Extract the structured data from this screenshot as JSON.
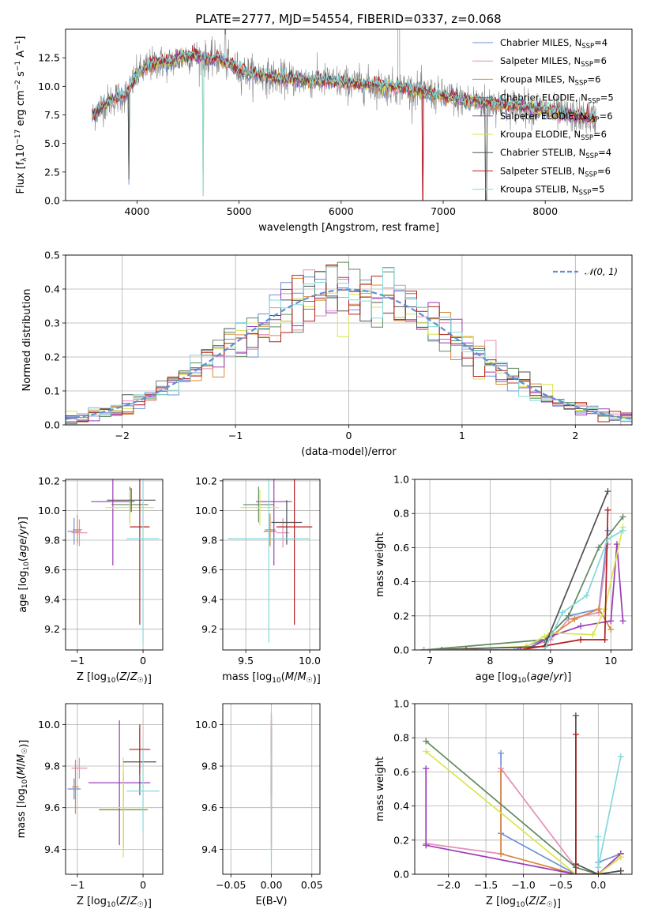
{
  "title": "PLATE=2777, MJD=54554, FIBERID=0337, z=0.068",
  "colors": [
    "#6e8fd8",
    "#e48fb6",
    "#d9893a",
    "#5f8a5f",
    "#9b3cb8",
    "#d8e64f",
    "#505050",
    "#b41e1e",
    "#83d8dc"
  ],
  "chart_data": [
    {
      "id": "spectrum",
      "type": "line",
      "xlabel": "wavelength [Angstrom, rest frame]",
      "ylabel": "Flux [f_λ10^-17 erg cm^-2 s^-1 A^-1]",
      "xlim": [
        3300,
        8850
      ],
      "ylim": [
        0,
        15
      ],
      "xticks": [
        4000,
        5000,
        6000,
        7000,
        8000
      ],
      "yticks": [
        0,
        2.5,
        5,
        7.5,
        10,
        12.5
      ],
      "ytick_labels": [
        "0.0",
        "2.5",
        "5.0",
        "7.5",
        "10.0",
        "12.5"
      ],
      "legend_position": "top-right",
      "series": [
        {
          "name": "Chabrier MILES, N_SSP=4",
          "label": "Chabrier MILES, N",
          "sub": "SSP",
          "suffix": "=4"
        },
        {
          "name": "Salpeter MILES, N_SSP=6",
          "label": "Salpeter MILES, N",
          "sub": "SSP",
          "suffix": "=6"
        },
        {
          "name": "Kroupa MILES, N_SSP=6",
          "label": "Kroupa MILES, N",
          "sub": "SSP",
          "suffix": "=6"
        },
        {
          "name": "Chabrier ELODIE, N_SSP=5",
          "label": "Chabrier ELODIE, N",
          "sub": "SSP",
          "suffix": "=5"
        },
        {
          "name": "Salpeter ELODIE, N_SSP=6",
          "label": "Salpeter ELODIE, N",
          "sub": "SSP",
          "suffix": "=6"
        },
        {
          "name": "Kroupa ELODIE, N_SSP=6",
          "label": "Kroupa ELODIE, N",
          "sub": "SSP",
          "suffix": "=6"
        },
        {
          "name": "Chabrier STELIB, N_SSP=4",
          "label": "Chabrier STELIB, N",
          "sub": "SSP",
          "suffix": "=4"
        },
        {
          "name": "Salpeter STELIB, N_SSP=6",
          "label": "Salpeter STELIB, N",
          "sub": "SSP",
          "suffix": "=6"
        },
        {
          "name": "Kroupa STELIB, N_SSP=5",
          "label": "Kroupa STELIB, N",
          "sub": "SSP",
          "suffix": "=5"
        }
      ],
      "continuum": {
        "x": [
          3560,
          3620,
          3700,
          3800,
          3900,
          4000,
          4100,
          4200,
          4300,
          4400,
          4500,
          4600,
          4700,
          4800,
          4900,
          5000,
          5200,
          5400,
          5600,
          5800,
          6000,
          6200,
          6400,
          6600,
          6800,
          7000,
          7200,
          7400,
          7600,
          7800,
          8000,
          8200,
          8400,
          8500
        ],
        "y": [
          7.3,
          8.0,
          8.6,
          9.0,
          9.3,
          11.0,
          11.7,
          12.1,
          12.0,
          12.4,
          12.7,
          12.6,
          12.3,
          12.4,
          12.0,
          11.4,
          11.0,
          10.7,
          10.6,
          10.5,
          10.3,
          10.2,
          10.0,
          9.9,
          9.5,
          9.1,
          8.8,
          8.6,
          8.4,
          8.2,
          7.9,
          7.5,
          7.3,
          7.2
        ]
      }
    },
    {
      "id": "residuals",
      "type": "line",
      "xlabel": "(data-model)/error",
      "ylabel": "Normed distribution",
      "xlim": [
        -2.5,
        2.5
      ],
      "ylim": [
        0,
        0.5
      ],
      "xticks": [
        -2,
        -1,
        0,
        1,
        2
      ],
      "xtick_labels": [
        "−2",
        "−1",
        "0",
        "1",
        "2"
      ],
      "yticks": [
        0,
        0.1,
        0.2,
        0.3,
        0.4,
        0.5
      ],
      "ytick_labels": [
        "0.0",
        "0.1",
        "0.2",
        "0.3",
        "0.4",
        "0.5"
      ],
      "legend_position": "top-right",
      "legend_label": "𝒩(0, 1)",
      "gaussian": {
        "mean": 0,
        "sigma": 1
      }
    },
    {
      "id": "age_vs_Z",
      "type": "errorbar",
      "xlabel": "Z [log10(Z/Z☉)]",
      "ylabel": "age [log10(age/yr)]",
      "xlim": [
        -1.18,
        0.3
      ],
      "ylim": [
        9.06,
        10.21
      ],
      "xticks": [
        -1,
        0
      ],
      "xtick_labels": [
        "−1",
        "0"
      ],
      "yticks": [
        9.2,
        9.4,
        9.6,
        9.8,
        10.0,
        10.2
      ],
      "ytick_labels": [
        "9.2",
        "9.4",
        "9.6",
        "9.8",
        "10.0",
        "10.2"
      ],
      "points": [
        {
          "x": -1.05,
          "xerr": 0.1,
          "y": 9.86,
          "yerr": 0.09
        },
        {
          "x": -0.97,
          "xerr": 0.12,
          "y": 9.85,
          "yerr": 0.09
        },
        {
          "x": -1.0,
          "xerr": 0.07,
          "y": 9.87,
          "yerr": 0.1
        },
        {
          "x": -0.2,
          "xerr": 0.28,
          "y": 10.04,
          "yerr": 0.12
        },
        {
          "x": -0.46,
          "xerr": 0.33,
          "y": 10.06,
          "yerr": 0.43
        },
        {
          "x": -0.2,
          "xerr": 0.37,
          "y": 10.02,
          "yerr": 0.12
        },
        {
          "x": -0.18,
          "xerr": 0.37,
          "y": 10.07,
          "yerr": 0.08
        },
        {
          "x": -0.05,
          "xerr": 0.15,
          "y": 9.89,
          "yerr": 0.66
        },
        {
          "x": 0.0,
          "xerr": 0.25,
          "y": 9.81,
          "yerr": 0.7
        }
      ]
    },
    {
      "id": "age_vs_mass",
      "type": "errorbar",
      "xlabel": "mass [log10(M/M☉)]",
      "ylabel": "",
      "xlim": [
        9.32,
        10.08
      ],
      "ylim": [
        9.06,
        10.21
      ],
      "xticks": [
        9.5,
        10.0
      ],
      "xtick_labels": [
        "9.5",
        "10.0"
      ],
      "yticks": [
        9.2,
        9.4,
        9.6,
        9.8,
        10.0,
        10.2
      ],
      "ytick_labels": [
        "9.2",
        "9.4",
        "9.6",
        "9.8",
        "10.0",
        "10.2"
      ],
      "points": [
        {
          "x": 9.69,
          "xerr": 0.05,
          "y": 9.86,
          "yerr": 0.1
        },
        {
          "x": 9.79,
          "xerr": 0.05,
          "y": 9.85,
          "yerr": 0.1
        },
        {
          "x": 9.69,
          "xerr": 0.04,
          "y": 9.87,
          "yerr": 0.11
        },
        {
          "x": 9.6,
          "xerr": 0.12,
          "y": 10.04,
          "yerr": 0.12
        },
        {
          "x": 9.72,
          "xerr": 0.14,
          "y": 10.06,
          "yerr": 0.43
        },
        {
          "x": 9.61,
          "xerr": 0.15,
          "y": 10.02,
          "yerr": 0.12
        },
        {
          "x": 9.82,
          "xerr": 0.12,
          "y": 9.92,
          "yerr": 0.15
        },
        {
          "x": 9.88,
          "xerr": 0.14,
          "y": 9.89,
          "yerr": 0.66
        },
        {
          "x": 9.68,
          "xerr": 0.32,
          "y": 9.81,
          "yerr": 0.7
        }
      ]
    },
    {
      "id": "massweight_vs_age",
      "type": "line",
      "xlabel": "age [log10(age/yr)]",
      "ylabel": "mass weight",
      "xlim": [
        6.75,
        10.35
      ],
      "ylim": [
        0,
        1
      ],
      "xticks": [
        7,
        8,
        9,
        10
      ],
      "xtick_labels": [
        "7",
        "8",
        "9",
        "10"
      ],
      "yticks": [
        0,
        0.2,
        0.4,
        0.6,
        0.8,
        1.0
      ],
      "ytick_labels": [
        "0.0",
        "0.2",
        "0.4",
        "0.6",
        "0.8",
        "1.0"
      ],
      "series": [
        {
          "x": [
            6.9,
            8.4,
            8.9,
            9.3,
            9.8,
            9.95
          ],
          "y": [
            0.0,
            0.0,
            0.06,
            0.2,
            0.24,
            0.7
          ]
        },
        {
          "x": [
            6.9,
            8.5,
            9.0,
            9.3,
            9.8,
            9.95
          ],
          "y": [
            0.0,
            0.0,
            0.06,
            0.18,
            0.22,
            0.62
          ]
        },
        {
          "x": [
            6.9,
            8.6,
            9.0,
            9.4,
            9.8,
            10.0
          ],
          "y": [
            0.0,
            0.0,
            0.08,
            0.18,
            0.24,
            0.12
          ]
        },
        {
          "x": [
            6.9,
            8.9,
            9.3,
            9.8,
            10.2
          ],
          "y": [
            0.0,
            0.06,
            0.2,
            0.6,
            0.78
          ]
        },
        {
          "x": [
            7.2,
            8.6,
            9.0,
            9.5,
            10.0,
            10.1,
            10.2
          ],
          "y": [
            0.0,
            0.0,
            0.08,
            0.14,
            0.17,
            0.62,
            0.17
          ]
        },
        {
          "x": [
            6.9,
            8.6,
            8.9,
            9.0,
            9.7,
            9.9,
            10.2
          ],
          "y": [
            0.0,
            0.02,
            0.08,
            0.1,
            0.09,
            0.24,
            0.72
          ]
        },
        {
          "x": [
            6.9,
            8.9,
            9.95
          ],
          "y": [
            0.0,
            0.02,
            0.93
          ]
        },
        {
          "x": [
            7.6,
            8.5,
            9.5,
            9.9,
            9.95
          ],
          "y": [
            0.0,
            0.0,
            0.06,
            0.06,
            0.82
          ]
        },
        {
          "x": [
            6.9,
            8.9,
            9.2,
            9.6,
            9.95,
            10.2
          ],
          "y": [
            0.0,
            0.0,
            0.22,
            0.32,
            0.65,
            0.7
          ]
        }
      ]
    },
    {
      "id": "mass_vs_Z",
      "type": "errorbar",
      "xlabel": "Z [log10(Z/Z☉)]",
      "ylabel": "mass [log10(M/M☉)]",
      "xlim": [
        -1.18,
        0.3
      ],
      "ylim": [
        9.28,
        10.1
      ],
      "xticks": [
        -1,
        0
      ],
      "xtick_labels": [
        "−1",
        "0"
      ],
      "yticks": [
        9.4,
        9.6,
        9.8,
        10.0
      ],
      "ytick_labels": [
        "9.4",
        "9.6",
        "9.8",
        "10.0"
      ],
      "points": [
        {
          "x": -1.05,
          "xerr": 0.1,
          "y": 9.69,
          "yerr": 0.05
        },
        {
          "x": -0.97,
          "xerr": 0.12,
          "y": 9.79,
          "yerr": 0.05
        },
        {
          "x": -1.03,
          "xerr": 0.05,
          "y": 9.7,
          "yerr": 0.13
        },
        {
          "x": -0.3,
          "xerr": 0.37,
          "y": 9.59,
          "yerr": 0.18
        },
        {
          "x": -0.36,
          "xerr": 0.47,
          "y": 9.72,
          "yerr": 0.3
        },
        {
          "x": -0.3,
          "xerr": 0.37,
          "y": 9.6,
          "yerr": 0.24
        },
        {
          "x": -0.05,
          "xerr": 0.25,
          "y": 9.82,
          "yerr": 0.16
        },
        {
          "x": -0.05,
          "xerr": 0.16,
          "y": 9.88,
          "yerr": 0.12
        },
        {
          "x": 0.0,
          "xerr": 0.25,
          "y": 9.68,
          "yerr": 0.2
        }
      ]
    },
    {
      "id": "mass_vs_EBV",
      "type": "errorbar",
      "xlabel": "E(B-V)",
      "ylabel": "",
      "xlim": [
        -0.06,
        0.06
      ],
      "ylim": [
        9.28,
        10.1
      ],
      "xticks": [
        -0.05,
        0.0,
        0.05
      ],
      "xtick_labels": [
        "−0.05",
        "0.00",
        "0.05"
      ],
      "yticks": [
        9.4,
        9.6,
        9.8,
        10.0
      ],
      "ytick_labels": [
        "9.4",
        "9.6",
        "9.8",
        "10.0"
      ],
      "points": [
        {
          "x": 0.0,
          "xerr": 0.0,
          "y": 9.69,
          "yerr": 0.05
        },
        {
          "x": 0.0,
          "xerr": 0.0,
          "y": 9.79,
          "yerr": 0.05
        },
        {
          "x": 0.0,
          "xerr": 0.0,
          "y": 9.7,
          "yerr": 0.1
        },
        {
          "x": 0.0,
          "xerr": 0.0,
          "y": 9.6,
          "yerr": 0.2
        },
        {
          "x": 0.0,
          "xerr": 0.0,
          "y": 9.72,
          "yerr": 0.3
        },
        {
          "x": 0.0,
          "xerr": 0.0,
          "y": 9.6,
          "yerr": 0.24
        },
        {
          "x": 0.0,
          "xerr": 0.0,
          "y": 9.82,
          "yerr": 0.16
        },
        {
          "x": 0.0,
          "xerr": 0.0,
          "y": 9.95,
          "yerr": 0.1
        },
        {
          "x": 0.0,
          "xerr": 0.0,
          "y": 9.68,
          "yerr": 0.38
        }
      ]
    },
    {
      "id": "massweight_vs_Z",
      "type": "line",
      "xlabel": "Z [log10(Z/Z☉)]",
      "ylabel": "mass weight",
      "xlim": [
        -2.45,
        0.45
      ],
      "ylim": [
        0,
        1
      ],
      "xticks": [
        -2.0,
        -1.5,
        -1.0,
        -0.5,
        0.0
      ],
      "xtick_labels": [
        "−2.0",
        "−1.5",
        "−1.0",
        "−0.5",
        "0.0"
      ],
      "yticks": [
        0,
        0.2,
        0.4,
        0.6,
        0.8,
        1.0
      ],
      "ytick_labels": [
        "0.0",
        "0.2",
        "0.4",
        "0.6",
        "0.8",
        "1.0"
      ],
      "series": [
        {
          "x": [
            -1.3,
            -1.3,
            -1.3,
            -0.3,
            0.0,
            0.0,
            0.3
          ],
          "y": [
            0.71,
            0.24,
            0.24,
            0.0,
            0.0,
            0.07,
            0.12
          ]
        },
        {
          "x": [
            -2.3,
            -1.3,
            -1.3,
            -0.3,
            0.0,
            0.3
          ],
          "y": [
            0.18,
            0.12,
            0.62,
            0.04,
            0.0,
            0.1
          ]
        },
        {
          "x": [
            -1.3,
            -1.3,
            -0.3,
            0.0,
            0.3
          ],
          "y": [
            0.6,
            0.12,
            0.0,
            0.0,
            0.12
          ]
        },
        {
          "x": [
            -2.3,
            -0.3,
            0.0,
            0.3
          ],
          "y": [
            0.78,
            0.04,
            0.0,
            0.02
          ]
        },
        {
          "x": [
            -2.3,
            -2.3,
            -2.3,
            -0.3,
            0.0,
            0.3
          ],
          "y": [
            0.62,
            0.17,
            0.17,
            0.0,
            0.0,
            0.12
          ]
        },
        {
          "x": [
            -2.3,
            -0.3,
            0.0,
            0.3
          ],
          "y": [
            0.72,
            0.0,
            0.0,
            0.1
          ]
        },
        {
          "x": [
            -0.3,
            -0.3,
            0.0,
            0.3
          ],
          "y": [
            0.93,
            0.06,
            0.0,
            0.02
          ]
        },
        {
          "x": [
            -0.3,
            -0.3,
            0.0
          ],
          "y": [
            0.82,
            0.0,
            0.0
          ]
        },
        {
          "x": [
            0.0,
            0.0,
            0.3
          ],
          "y": [
            0.22,
            0.04,
            0.69
          ]
        }
      ]
    }
  ]
}
